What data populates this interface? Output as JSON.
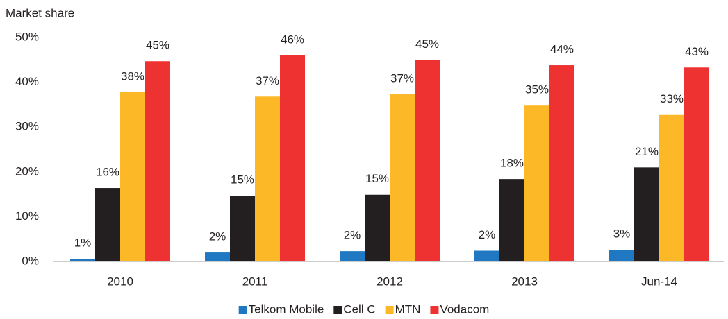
{
  "chart_data": {
    "type": "bar",
    "y_axis_label": "Market share",
    "categories": [
      "2010",
      "2011",
      "2012",
      "2013",
      "Jun-14"
    ],
    "series": [
      {
        "name": "Telkom Mobile",
        "color": "#1f78c1",
        "values": [
          0.6,
          2.0,
          2.3,
          2.4,
          2.6
        ],
        "value_labels": [
          "1%",
          "2%",
          "2%",
          "2%",
          "3%"
        ]
      },
      {
        "name": "Cell C",
        "color": "#231f20",
        "values": [
          16.4,
          14.7,
          14.9,
          18.4,
          21.0
        ],
        "value_labels": [
          "16%",
          "15%",
          "15%",
          "18%",
          "21%"
        ]
      },
      {
        "name": "MTN",
        "color": "#fdb827",
        "values": [
          37.8,
          36.8,
          37.3,
          34.8,
          32.7
        ],
        "value_labels": [
          "38%",
          "37%",
          "37%",
          "35%",
          "33%"
        ]
      },
      {
        "name": "Vodacom",
        "color": "#ee3131",
        "values": [
          44.7,
          46.0,
          45.0,
          43.8,
          43.3
        ],
        "value_labels": [
          "45%",
          "46%",
          "45%",
          "44%",
          "43%"
        ]
      }
    ],
    "ylim": [
      0,
      50
    ],
    "yticks": [
      {
        "value": 0,
        "label": "0%"
      },
      {
        "value": 10,
        "label": "10%"
      },
      {
        "value": 20,
        "label": "20%"
      },
      {
        "value": 30,
        "label": "30%"
      },
      {
        "value": 40,
        "label": "40%"
      },
      {
        "value": 50,
        "label": "50%"
      }
    ],
    "grid": false,
    "legend": "bottom"
  }
}
